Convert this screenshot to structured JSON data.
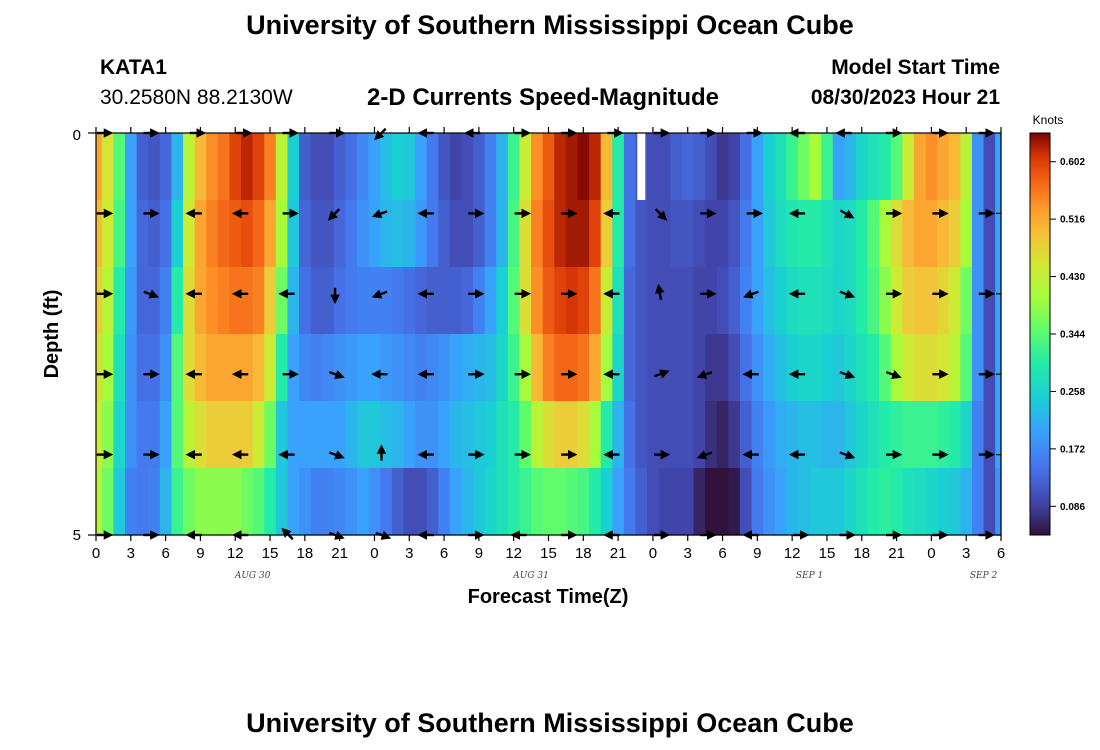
{
  "title": "University of Southern Mississippi Ocean Cube",
  "title_bottom": "University of Southern Mississippi Ocean Cube",
  "station": {
    "id": "KATA1",
    "coords": "30.2580N  88.2130W"
  },
  "subtitle": "2-D Currents Speed-Magnitude",
  "model_start": {
    "label": "Model Start Time",
    "value": "08/30/2023 Hour 21"
  },
  "colorbar_unit": "Knots",
  "chart_data": {
    "type": "heatmap",
    "title": "2-D Currents Speed-Magnitude",
    "xlabel": "Forecast Time(Z)",
    "ylabel": "Depth (ft)",
    "y_ticks": [
      "0",
      "5"
    ],
    "ylim": [
      0,
      5
    ],
    "x_tick_labels": [
      "0",
      "3",
      "6",
      "9",
      "12",
      "15",
      "18",
      "21",
      "0",
      "3",
      "6",
      "9",
      "12",
      "15",
      "18",
      "21",
      "0",
      "3",
      "6",
      "9",
      "12",
      "15",
      "18",
      "21",
      "0",
      "3",
      "6"
    ],
    "date_labels": [
      {
        "label": "AUG 30",
        "tick_index": 4.5
      },
      {
        "label": "AUG 31",
        "tick_index": 12.5
      },
      {
        "label": "SEP 1",
        "tick_index": 20.5
      },
      {
        "label": "SEP 2",
        "tick_index": 25.5
      }
    ],
    "colorbar": {
      "min": 0.043,
      "max": 0.645,
      "ticks": [
        0.086,
        0.172,
        0.258,
        0.344,
        0.43,
        0.516,
        0.602
      ]
    },
    "time_hours": [
      0,
      1,
      2,
      3,
      4,
      5,
      6,
      7,
      8,
      9,
      10,
      11,
      12,
      13,
      14,
      15,
      16,
      17,
      18,
      19,
      20,
      21,
      22,
      23,
      24,
      25,
      26,
      27,
      28,
      29,
      30,
      31,
      32,
      33,
      34,
      35,
      36,
      37,
      38,
      39,
      40,
      41,
      42,
      43,
      44,
      45,
      46,
      47,
      48,
      49,
      50,
      51,
      52,
      53,
      54,
      55,
      56,
      57,
      58,
      59,
      60,
      61,
      62,
      63,
      64,
      65,
      66,
      67,
      68,
      69,
      70,
      71,
      72,
      73,
      74,
      75,
      76,
      77,
      78
    ],
    "speed_rows": [
      [
        0.52,
        0.45,
        0.34,
        0.2,
        0.12,
        0.11,
        0.13,
        0.22,
        0.42,
        0.5,
        0.54,
        0.56,
        0.6,
        0.62,
        0.6,
        0.55,
        0.42,
        0.25,
        0.12,
        0.1,
        0.1,
        0.12,
        0.14,
        0.17,
        0.2,
        0.23,
        0.25,
        0.24,
        0.2,
        0.15,
        0.11,
        0.09,
        0.1,
        0.12,
        0.16,
        0.22,
        0.32,
        0.44,
        0.54,
        0.58,
        0.62,
        0.63,
        0.64,
        0.62,
        0.5,
        0.3,
        0.14,
        0.11,
        0.1,
        0.1,
        0.12,
        0.13,
        0.12,
        0.1,
        0.08,
        0.09,
        0.14,
        0.2,
        0.25,
        0.28,
        0.32,
        0.36,
        0.4,
        0.32,
        0.2,
        0.22,
        0.26,
        0.28,
        0.3,
        0.34,
        0.44,
        0.52,
        0.54,
        0.52,
        0.5,
        0.42,
        0.18,
        0.1,
        0.2
      ],
      [
        0.5,
        0.44,
        0.33,
        0.2,
        0.13,
        0.12,
        0.14,
        0.25,
        0.44,
        0.52,
        0.55,
        0.57,
        0.58,
        0.59,
        0.57,
        0.52,
        0.4,
        0.24,
        0.13,
        0.11,
        0.11,
        0.13,
        0.15,
        0.18,
        0.2,
        0.22,
        0.23,
        0.22,
        0.19,
        0.15,
        0.12,
        0.1,
        0.1,
        0.12,
        0.16,
        0.22,
        0.33,
        0.46,
        0.55,
        0.59,
        0.62,
        0.63,
        0.63,
        0.6,
        0.48,
        0.3,
        0.14,
        0.11,
        0.1,
        0.1,
        0.11,
        0.11,
        0.1,
        0.09,
        0.09,
        0.11,
        0.15,
        0.2,
        0.24,
        0.27,
        0.29,
        0.3,
        0.3,
        0.28,
        0.26,
        0.27,
        0.3,
        0.34,
        0.4,
        0.46,
        0.5,
        0.52,
        0.52,
        0.5,
        0.48,
        0.4,
        0.18,
        0.1,
        0.2
      ],
      [
        0.48,
        0.42,
        0.3,
        0.19,
        0.13,
        0.13,
        0.16,
        0.3,
        0.46,
        0.52,
        0.54,
        0.55,
        0.56,
        0.56,
        0.55,
        0.48,
        0.36,
        0.22,
        0.14,
        0.12,
        0.12,
        0.14,
        0.15,
        0.16,
        0.16,
        0.16,
        0.15,
        0.14,
        0.13,
        0.12,
        0.12,
        0.12,
        0.13,
        0.16,
        0.2,
        0.25,
        0.34,
        0.46,
        0.54,
        0.58,
        0.6,
        0.61,
        0.6,
        0.56,
        0.44,
        0.28,
        0.13,
        0.11,
        0.1,
        0.1,
        0.1,
        0.1,
        0.09,
        0.09,
        0.1,
        0.12,
        0.16,
        0.2,
        0.23,
        0.25,
        0.27,
        0.28,
        0.28,
        0.27,
        0.26,
        0.27,
        0.3,
        0.33,
        0.38,
        0.44,
        0.48,
        0.49,
        0.49,
        0.47,
        0.44,
        0.36,
        0.18,
        0.1,
        0.2
      ],
      [
        0.46,
        0.4,
        0.28,
        0.18,
        0.14,
        0.14,
        0.18,
        0.34,
        0.46,
        0.5,
        0.52,
        0.52,
        0.52,
        0.52,
        0.5,
        0.44,
        0.3,
        0.2,
        0.17,
        0.16,
        0.17,
        0.18,
        0.19,
        0.2,
        0.2,
        0.19,
        0.18,
        0.17,
        0.16,
        0.17,
        0.18,
        0.2,
        0.21,
        0.22,
        0.23,
        0.26,
        0.32,
        0.4,
        0.5,
        0.55,
        0.57,
        0.57,
        0.56,
        0.52,
        0.4,
        0.26,
        0.13,
        0.11,
        0.1,
        0.1,
        0.1,
        0.1,
        0.09,
        0.08,
        0.08,
        0.1,
        0.14,
        0.18,
        0.21,
        0.23,
        0.25,
        0.26,
        0.26,
        0.25,
        0.24,
        0.26,
        0.28,
        0.3,
        0.34,
        0.4,
        0.44,
        0.46,
        0.46,
        0.45,
        0.42,
        0.34,
        0.18,
        0.1,
        0.2
      ],
      [
        0.44,
        0.38,
        0.26,
        0.18,
        0.15,
        0.15,
        0.2,
        0.34,
        0.42,
        0.46,
        0.48,
        0.48,
        0.48,
        0.48,
        0.44,
        0.36,
        0.24,
        0.2,
        0.2,
        0.2,
        0.2,
        0.2,
        0.22,
        0.24,
        0.24,
        0.23,
        0.22,
        0.2,
        0.18,
        0.18,
        0.2,
        0.22,
        0.23,
        0.24,
        0.25,
        0.28,
        0.3,
        0.35,
        0.42,
        0.46,
        0.48,
        0.48,
        0.46,
        0.4,
        0.3,
        0.22,
        0.14,
        0.11,
        0.1,
        0.1,
        0.1,
        0.1,
        0.09,
        0.07,
        0.06,
        0.08,
        0.12,
        0.16,
        0.19,
        0.21,
        0.22,
        0.23,
        0.23,
        0.22,
        0.22,
        0.24,
        0.26,
        0.28,
        0.3,
        0.31,
        0.32,
        0.32,
        0.32,
        0.31,
        0.3,
        0.26,
        0.16,
        0.1,
        0.2
      ],
      [
        0.42,
        0.36,
        0.24,
        0.16,
        0.15,
        0.16,
        0.22,
        0.32,
        0.36,
        0.38,
        0.38,
        0.38,
        0.38,
        0.36,
        0.34,
        0.3,
        0.24,
        0.2,
        0.18,
        0.16,
        0.16,
        0.17,
        0.18,
        0.2,
        0.18,
        0.15,
        0.12,
        0.1,
        0.1,
        0.12,
        0.16,
        0.2,
        0.22,
        0.24,
        0.26,
        0.28,
        0.3,
        0.32,
        0.34,
        0.35,
        0.35,
        0.34,
        0.33,
        0.3,
        0.25,
        0.2,
        0.15,
        0.12,
        0.1,
        0.09,
        0.09,
        0.09,
        0.06,
        0.03,
        0.03,
        0.05,
        0.1,
        0.15,
        0.18,
        0.2,
        0.22,
        0.23,
        0.24,
        0.24,
        0.24,
        0.26,
        0.28,
        0.3,
        0.31,
        0.3,
        0.28,
        0.27,
        0.26,
        0.25,
        0.24,
        0.22,
        0.16,
        0.1,
        0.18
      ]
    ],
    "vector_rows_depth": [
      0,
      1,
      2,
      3,
      4,
      5
    ],
    "vector_columns_hours": [
      0,
      4,
      8,
      12,
      16,
      20,
      24,
      28,
      32,
      36,
      40,
      44,
      48,
      52,
      56,
      60,
      64,
      68,
      72,
      76
    ],
    "vector_angles_deg": [
      [
        0,
        0,
        0,
        0,
        0,
        0,
        225,
        180,
        180,
        0,
        0,
        0,
        0,
        0,
        0,
        180,
        180,
        0,
        0,
        0
      ],
      [
        0,
        0,
        180,
        180,
        0,
        225,
        200,
        180,
        0,
        0,
        0,
        180,
        315,
        0,
        0,
        180,
        330,
        0,
        0,
        0
      ],
      [
        0,
        340,
        180,
        180,
        180,
        270,
        200,
        180,
        0,
        0,
        0,
        180,
        100,
        0,
        200,
        180,
        340,
        0,
        0,
        0
      ],
      [
        0,
        0,
        180,
        180,
        0,
        340,
        180,
        180,
        0,
        0,
        0,
        180,
        20,
        200,
        180,
        180,
        340,
        340,
        0,
        0
      ],
      [
        0,
        0,
        180,
        180,
        180,
        340,
        90,
        180,
        0,
        0,
        0,
        180,
        0,
        200,
        180,
        180,
        340,
        0,
        0,
        0
      ],
      [
        0,
        0,
        180,
        180,
        135,
        340,
        340,
        180,
        0,
        180,
        0,
        180,
        0,
        0,
        180,
        0,
        0,
        0,
        0,
        0
      ]
    ],
    "missing_cells": [
      {
        "hour": 47,
        "depth_row": 0
      }
    ]
  }
}
